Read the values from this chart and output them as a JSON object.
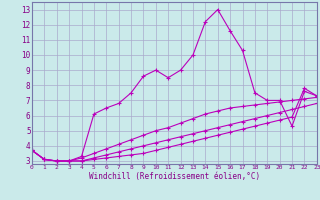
{
  "xlabel": "Windchill (Refroidissement éolien,°C)",
  "bg_color": "#caeaea",
  "grid_color": "#aaaacc",
  "line_color": "#bb00bb",
  "spine_color": "#7777aa",
  "x_ticks": [
    0,
    1,
    2,
    3,
    4,
    5,
    6,
    7,
    8,
    9,
    10,
    11,
    12,
    13,
    14,
    15,
    16,
    17,
    18,
    19,
    20,
    21,
    22,
    23
  ],
  "y_ticks": [
    3,
    4,
    5,
    6,
    7,
    8,
    9,
    10,
    11,
    12,
    13
  ],
  "xlim": [
    0,
    23
  ],
  "ylim": [
    2.8,
    13.5
  ],
  "series": [
    [
      3.7,
      3.1,
      3.0,
      3.0,
      3.3,
      6.1,
      6.5,
      6.8,
      7.5,
      8.6,
      9.0,
      8.5,
      9.0,
      10.0,
      12.2,
      13.0,
      11.6,
      10.3,
      7.5,
      7.0,
      7.0,
      5.3,
      7.6,
      7.3
    ],
    [
      3.7,
      3.1,
      3.0,
      3.0,
      3.2,
      3.5,
      3.8,
      4.1,
      4.4,
      4.7,
      5.0,
      5.2,
      5.5,
      5.8,
      6.1,
      6.3,
      6.5,
      6.6,
      6.7,
      6.8,
      6.9,
      7.0,
      7.1,
      7.2
    ],
    [
      3.7,
      3.1,
      3.0,
      3.0,
      3.0,
      3.2,
      3.4,
      3.6,
      3.8,
      4.0,
      4.2,
      4.4,
      4.6,
      4.8,
      5.0,
      5.2,
      5.4,
      5.6,
      5.8,
      6.0,
      6.2,
      6.4,
      6.6,
      6.8
    ],
    [
      3.7,
      3.1,
      3.0,
      3.0,
      3.0,
      3.1,
      3.2,
      3.3,
      3.4,
      3.5,
      3.7,
      3.9,
      4.1,
      4.3,
      4.5,
      4.7,
      4.9,
      5.1,
      5.3,
      5.5,
      5.7,
      5.9,
      7.8,
      7.3
    ]
  ]
}
